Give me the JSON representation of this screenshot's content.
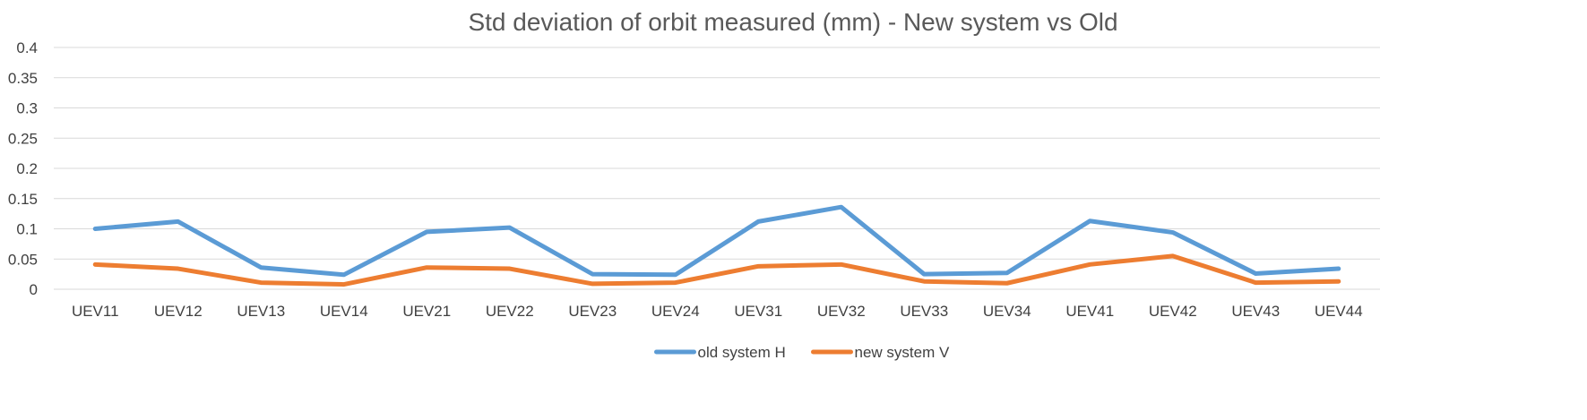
{
  "chart_data": {
    "type": "line",
    "title": "Std deviation of orbit measured (mm) - New system vs Old",
    "xlabel": "",
    "ylabel": "",
    "categories": [
      "UEV11",
      "UEV12",
      "UEV13",
      "UEV14",
      "UEV21",
      "UEV22",
      "UEV23",
      "UEV24",
      "UEV31",
      "UEV32",
      "UEV33",
      "UEV34",
      "UEV41",
      "UEV42",
      "UEV43",
      "UEV44"
    ],
    "ylim": [
      0,
      0.4
    ],
    "yticks": [
      0,
      0.05,
      0.1,
      0.15,
      0.2,
      0.25,
      0.3,
      0.35,
      0.4
    ],
    "ytick_labels": [
      "0",
      "0.05",
      "0.1",
      "0.15",
      "0.2",
      "0.25",
      "0.3",
      "0.35",
      "0.4"
    ],
    "grid": true,
    "legend_position": "bottom",
    "series": [
      {
        "name": "old system H",
        "color": "#5b9bd5",
        "values": [
          0.1,
          0.112,
          0.036,
          0.024,
          0.095,
          0.102,
          0.025,
          0.024,
          0.112,
          0.136,
          0.025,
          0.027,
          0.113,
          0.094,
          0.026,
          0.034
        ]
      },
      {
        "name": "new system V",
        "color": "#ed7d31",
        "values": [
          0.041,
          0.034,
          0.011,
          0.008,
          0.036,
          0.034,
          0.009,
          0.011,
          0.038,
          0.041,
          0.013,
          0.01,
          0.041,
          0.055,
          0.011,
          0.013
        ]
      }
    ]
  }
}
